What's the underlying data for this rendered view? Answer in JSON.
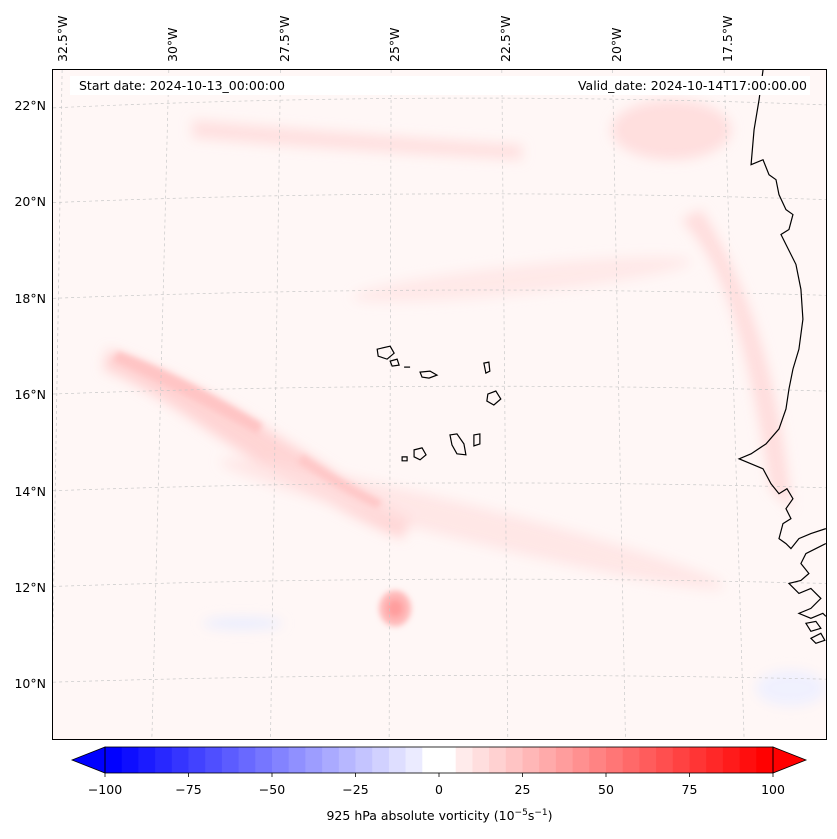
{
  "map": {
    "start_date": "Start date: 2024-10-13_00:00:00",
    "valid_date": "Valid_date: 2024-10-14T17:00:00.00",
    "lon_ticks": [
      "32.5°W",
      "30°W",
      "27.5°W",
      "25°W",
      "22.5°W",
      "20°W",
      "17.5°W"
    ],
    "lat_ticks": [
      "22°N",
      "20°N",
      "18°N",
      "16°N",
      "14°N",
      "12°N",
      "10°N"
    ],
    "extent": {
      "lon_min": -33.0,
      "lon_max": -15.8,
      "lat_min": 8.8,
      "lat_max": 22.8
    }
  },
  "colorbar": {
    "ticks": [
      "−100",
      "−75",
      "−50",
      "−25",
      "0",
      "25",
      "50",
      "75",
      "100"
    ],
    "label_prefix": "925 hPa absolute vorticity (10",
    "label_exp1": "−5",
    "label_mid": "s",
    "label_exp2": "−1",
    "label_suffix": ")",
    "vmin": -100,
    "vmax": 100,
    "neg_color": "#0000ff",
    "pos_color": "#ff0000"
  },
  "colors": {
    "background_field": "#fff7f6",
    "coastline": "#000000",
    "grid": "#c8c8c8"
  }
}
